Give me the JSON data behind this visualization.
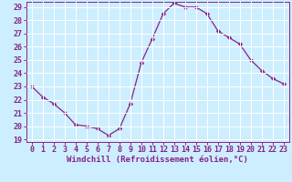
{
  "hours": [
    0,
    1,
    2,
    3,
    4,
    5,
    6,
    7,
    8,
    9,
    10,
    11,
    12,
    13,
    14,
    15,
    16,
    17,
    18,
    19,
    20,
    21,
    22,
    23
  ],
  "values": [
    23.0,
    22.2,
    21.7,
    21.0,
    20.1,
    20.0,
    19.8,
    19.3,
    19.8,
    21.7,
    24.8,
    26.6,
    28.5,
    29.3,
    29.0,
    29.0,
    28.5,
    27.2,
    26.7,
    26.2,
    25.0,
    24.2,
    23.6,
    23.2
  ],
  "line_color": "#882288",
  "marker": "D",
  "marker_size": 2.2,
  "background_color": "#cceeff",
  "grid_color": "#ffffff",
  "xlabel": "Windchill (Refroidissement éolien,°C)",
  "xlabel_color": "#882288",
  "tick_color": "#882288",
  "ylim_min": 18.8,
  "ylim_max": 29.4,
  "yticks": [
    19,
    20,
    21,
    22,
    23,
    24,
    25,
    26,
    27,
    28,
    29
  ],
  "xticks": [
    0,
    1,
    2,
    3,
    4,
    5,
    6,
    7,
    8,
    9,
    10,
    11,
    12,
    13,
    14,
    15,
    16,
    17,
    18,
    19,
    20,
    21,
    22,
    23
  ],
  "label_fontsize": 6.5,
  "tick_fontsize": 6.0
}
